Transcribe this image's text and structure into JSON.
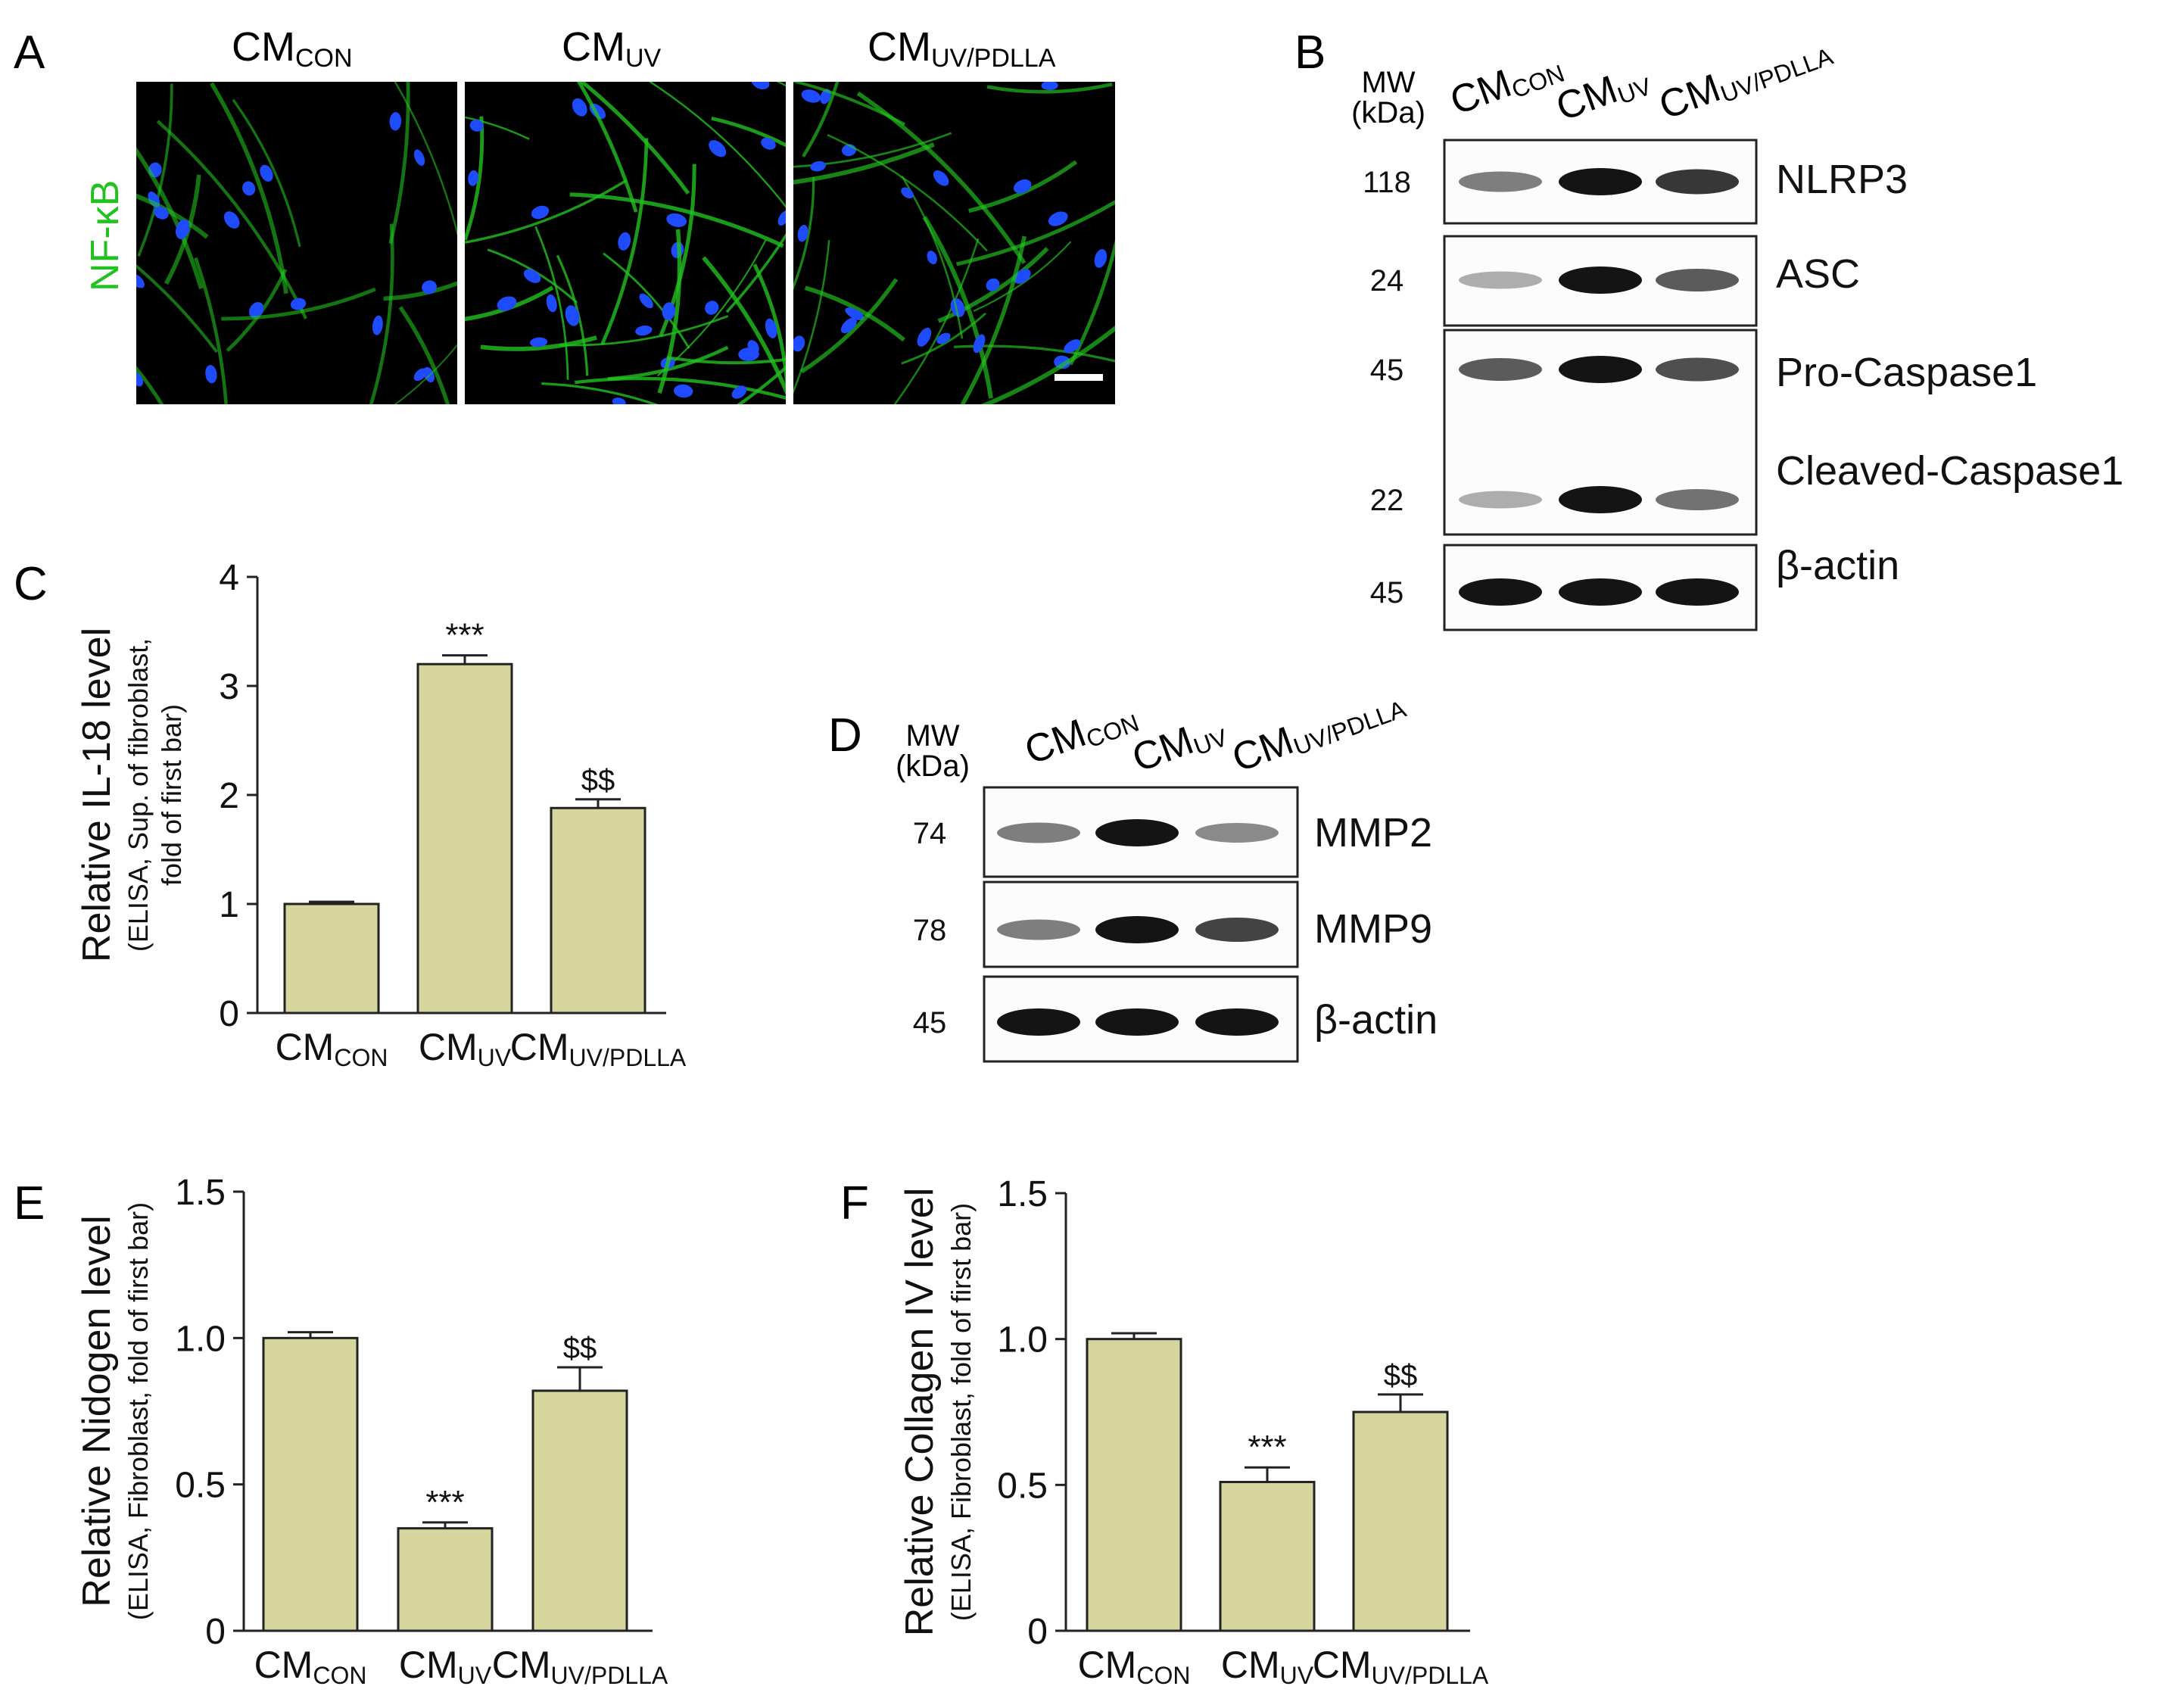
{
  "panel_letters": [
    "A",
    "B",
    "C",
    "D",
    "E",
    "F"
  ],
  "groups": [
    {
      "main": "CM",
      "sub": "CON"
    },
    {
      "main": "CM",
      "sub": "UV"
    },
    {
      "main": "CM",
      "sub": "UV/PDLLA"
    }
  ],
  "panel_a": {
    "stain_label": "NF-κB",
    "colors": {
      "stain": "#21c21f",
      "nuclei": "#1f4bff",
      "scale_bar": "#ffffff"
    }
  },
  "panel_b": {
    "mw_label_line1": "MW",
    "mw_label_line2": "(kDa)",
    "blots": [
      {
        "name": "NLRP3",
        "mw": [
          "118"
        ],
        "intensity": [
          0.55,
          1.0,
          0.85
        ]
      },
      {
        "name": "ASC",
        "mw": [
          "24"
        ],
        "intensity": [
          0.35,
          1.0,
          0.7
        ]
      },
      {
        "name": "Pro-Caspase1",
        "mw": [
          "45"
        ],
        "intensity": [
          0.7,
          1.0,
          0.75
        ]
      },
      {
        "name": "Cleaved-Caspase1",
        "mw": [
          "22"
        ],
        "intensity": [
          0.35,
          1.0,
          0.6
        ]
      },
      {
        "name": "β-actin",
        "mw": [
          "45"
        ],
        "intensity": [
          1.0,
          1.0,
          1.0
        ]
      }
    ]
  },
  "panel_d": {
    "mw_label_line1": "MW",
    "mw_label_line2": "(kDa)",
    "blots": [
      {
        "name": "MMP2",
        "mw": [
          "74"
        ],
        "intensity": [
          0.55,
          1.0,
          0.5
        ]
      },
      {
        "name": "MMP9",
        "mw": [
          "78"
        ],
        "intensity": [
          0.55,
          1.0,
          0.8
        ]
      },
      {
        "name": "β-actin",
        "mw": [
          "45"
        ],
        "intensity": [
          1.0,
          1.0,
          1.0
        ]
      }
    ]
  },
  "colors": {
    "bar_fill": "#d6d59e",
    "bar_stroke": "#222222",
    "text": "#111111"
  },
  "chart_data": [
    {
      "panel": "C",
      "type": "bar",
      "categories": [
        "CM_CON",
        "CM_UV",
        "CM_UV/PDLLA"
      ],
      "values": [
        1.0,
        3.2,
        1.88
      ],
      "errors": [
        0.02,
        0.08,
        0.08
      ],
      "annotations": [
        "",
        "***",
        "$$"
      ],
      "ylabel": "Relative IL-18 level",
      "ylabel_sub1": "(ELISA, Sup. of fibroblast,",
      "ylabel_sub2": "fold of first bar)",
      "ylim": [
        0,
        4
      ],
      "yticks": [
        0,
        1,
        2,
        3,
        4
      ],
      "ytick_labels": [
        "0",
        "1",
        "2",
        "3",
        "4"
      ]
    },
    {
      "panel": "E",
      "type": "bar",
      "categories": [
        "CM_CON",
        "CM_UV",
        "CM_UV/PDLLA"
      ],
      "values": [
        1.0,
        0.35,
        0.82
      ],
      "errors": [
        0.02,
        0.02,
        0.08
      ],
      "annotations": [
        "",
        "***",
        "$$"
      ],
      "ylabel": "Relative Nidogen level",
      "ylabel_sub1": "(ELISA, Fibroblast, fold of first bar)",
      "ylabel_sub2": "",
      "ylim": [
        0,
        1.5
      ],
      "yticks": [
        0,
        0.5,
        1.0,
        1.5
      ],
      "ytick_labels": [
        "0",
        "0.5",
        "1.0",
        "1.5"
      ]
    },
    {
      "panel": "F",
      "type": "bar",
      "categories": [
        "CM_CON",
        "CM_UV",
        "CM_UV/PDLLA"
      ],
      "values": [
        1.0,
        0.51,
        0.75
      ],
      "errors": [
        0.02,
        0.05,
        0.06
      ],
      "annotations": [
        "",
        "***",
        "$$"
      ],
      "ylabel": "Relative Collagen IV level",
      "ylabel_sub1": "(ELISA, Fibroblast, fold of first bar)",
      "ylabel_sub2": "",
      "ylim": [
        0,
        1.5
      ],
      "yticks": [
        0,
        0.5,
        1.0,
        1.5
      ],
      "ytick_labels": [
        "0",
        "0.5",
        "1.0",
        "1.5"
      ]
    }
  ]
}
